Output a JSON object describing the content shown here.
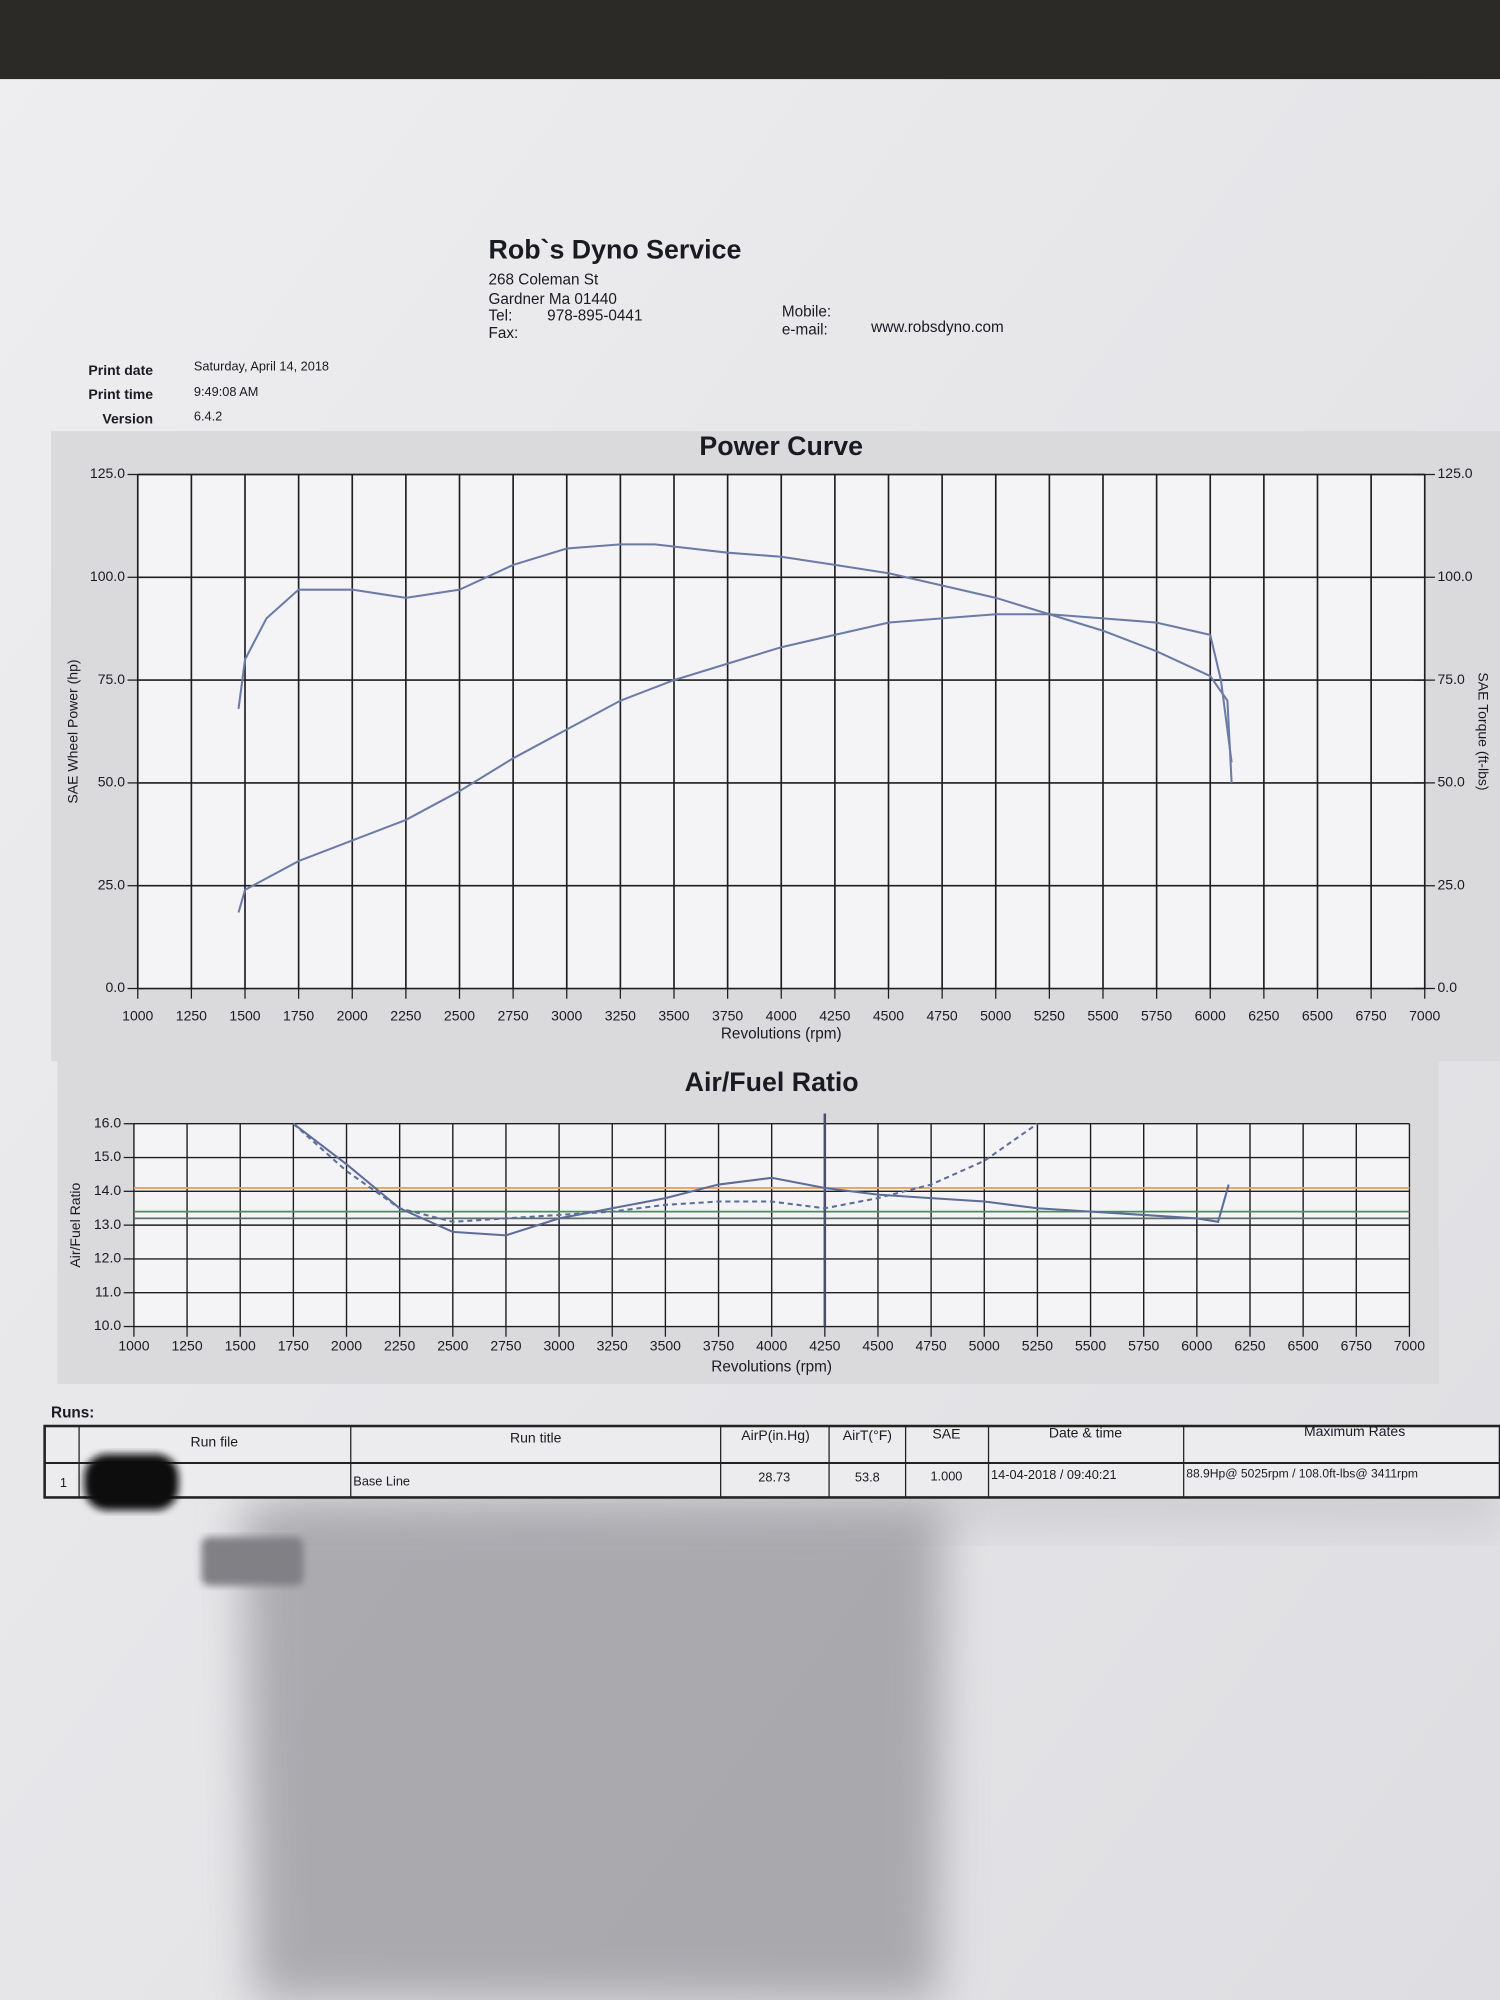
{
  "header": {
    "company": "Rob`s Dyno Service",
    "address": "268 Coleman St",
    "city": "Gardner Ma 01440",
    "tel_label": "Tel:",
    "tel": "978-895-0441",
    "fax_label": "Fax:",
    "mobile_label": "Mobile:",
    "email_label": "e-mail:",
    "website": "www.robsdyno.com"
  },
  "print_info": [
    {
      "label": "Print date",
      "value": "Saturday, April 14, 2018"
    },
    {
      "label": "Print time",
      "value": "9:49:08 AM"
    },
    {
      "label": "Version",
      "value": "6.4.2"
    }
  ],
  "chart_data": [
    {
      "type": "line",
      "title": "Power Curve",
      "x_label": "Revolutions (rpm)",
      "y_label": "SAE Wheel Power (hp)",
      "y2_label": "SAE Torque (ft-lbs)",
      "xlim": [
        1000,
        7000
      ],
      "xticks": [
        1000,
        1250,
        1500,
        1750,
        2000,
        2250,
        2500,
        2750,
        3000,
        3250,
        3500,
        3750,
        4000,
        4250,
        4500,
        4750,
        5000,
        5250,
        5500,
        5750,
        6000,
        6250,
        6500,
        6750,
        7000
      ],
      "ylim": [
        0,
        125
      ],
      "yticks": [
        {
          "value": 0,
          "label": "0.0"
        },
        {
          "value": 25,
          "label": "25.0"
        },
        {
          "value": 50,
          "label": "50.0"
        },
        {
          "value": 75,
          "label": "75.0"
        },
        {
          "value": 100,
          "label": "100.0"
        },
        {
          "value": 125,
          "label": "125.0"
        }
      ],
      "y2lim": [
        0,
        125
      ],
      "y2ticks": [
        {
          "value": 0,
          "label": "0.0"
        },
        {
          "value": 25,
          "label": "25.0"
        },
        {
          "value": 50,
          "label": "50.0"
        },
        {
          "value": 75,
          "label": "75.0"
        },
        {
          "value": 100,
          "label": "100.0"
        },
        {
          "value": 125,
          "label": "125.0"
        }
      ],
      "grid": true,
      "series": [
        {
          "color": "#6b7ba6",
          "axis": "y",
          "x": [
            1470,
            1500,
            1750,
            2000,
            2250,
            2500,
            2750,
            3000,
            3250,
            3500,
            3750,
            4000,
            4250,
            4500,
            4750,
            5000,
            5250,
            5500,
            5750,
            6000,
            6050,
            6100
          ],
          "values": [
            18.5,
            24,
            31,
            36,
            41,
            48,
            56,
            63,
            70,
            75,
            79,
            83,
            86,
            89,
            90,
            91,
            91,
            90,
            89,
            86,
            75,
            55
          ]
        },
        {
          "color": "#6b7ba6",
          "axis": "y2",
          "x": [
            1470,
            1500,
            1600,
            1750,
            2000,
            2250,
            2500,
            2750,
            3000,
            3250,
            3411,
            3750,
            4000,
            4250,
            4500,
            4750,
            5000,
            5250,
            5500,
            5750,
            6000,
            6080,
            6100
          ],
          "values": [
            68,
            80,
            90,
            97,
            97,
            95,
            97,
            103,
            107,
            108,
            108,
            106,
            105,
            103,
            101,
            98,
            95,
            91,
            87,
            82,
            76,
            70,
            50
          ]
        }
      ]
    },
    {
      "type": "line",
      "title": "Air/Fuel Ratio",
      "x_label": "Revolutions (rpm)",
      "y_label": "Air/Fuel Ratio",
      "xlim": [
        1000,
        7000
      ],
      "xticks": [
        1000,
        1250,
        1500,
        1750,
        2000,
        2250,
        2500,
        2750,
        3000,
        3250,
        3500,
        3750,
        4000,
        4250,
        4500,
        4750,
        5000,
        5250,
        5500,
        5750,
        6000,
        6250,
        6500,
        6750,
        7000
      ],
      "ylim": [
        10,
        16
      ],
      "yticks": [
        {
          "value": 10,
          "label": "10.0"
        },
        {
          "value": 11,
          "label": "11.0"
        },
        {
          "value": 12,
          "label": "12.0"
        },
        {
          "value": 13,
          "label": "13.0"
        },
        {
          "value": 14,
          "label": "14.0"
        },
        {
          "value": 15,
          "label": "15.0"
        },
        {
          "value": 16,
          "label": "16.0"
        }
      ],
      "grid": true,
      "hlines": [
        {
          "value": 14.1,
          "color": "#e8a262"
        },
        {
          "value": 13.4,
          "color": "#4f8a5c"
        },
        {
          "value": 13.2,
          "color": "#5a6f6a"
        }
      ],
      "vlines": [
        {
          "value": 4250,
          "color": "#4a4f6a"
        }
      ],
      "series": [
        {
          "color": "#5d6c98",
          "dash": false,
          "x": [
            1750,
            2000,
            2250,
            2500,
            2750,
            3000,
            3250,
            3500,
            3750,
            4000,
            4250,
            4500,
            4750,
            5000,
            5250,
            5500,
            5750,
            6000,
            6100,
            6150
          ],
          "values": [
            16.0,
            14.8,
            13.5,
            12.8,
            12.7,
            13.2,
            13.5,
            13.8,
            14.2,
            14.4,
            14.1,
            13.9,
            13.8,
            13.7,
            13.5,
            13.4,
            13.3,
            13.2,
            13.1,
            14.2
          ]
        },
        {
          "color": "#5d6c98",
          "dash": true,
          "x": [
            1750,
            2000,
            2250,
            2500,
            2750,
            3000,
            3250,
            3500,
            3750,
            4000,
            4250,
            4500,
            4750,
            5000,
            5250
          ],
          "values": [
            16.0,
            14.6,
            13.5,
            13.1,
            13.2,
            13.3,
            13.4,
            13.6,
            13.7,
            13.7,
            13.5,
            13.8,
            14.2,
            14.9,
            16.0
          ]
        }
      ]
    }
  ],
  "runs": {
    "title": "Runs:",
    "columns": [
      "Run file",
      "Run title",
      "AirP(in.Hg)",
      "AirT(°F)",
      "SAE",
      "Date & time",
      "Maximum Rates"
    ],
    "rows": [
      {
        "index": "1",
        "run_title": "Base Line",
        "airp": "28.73",
        "airt": "53.8",
        "sae": "1.000",
        "date_time": "14-04-2018 / 09:40:21",
        "maximum_rates": "88.9Hp@ 5025rpm / 108.0ft-lbs@ 3411rpm"
      }
    ]
  }
}
